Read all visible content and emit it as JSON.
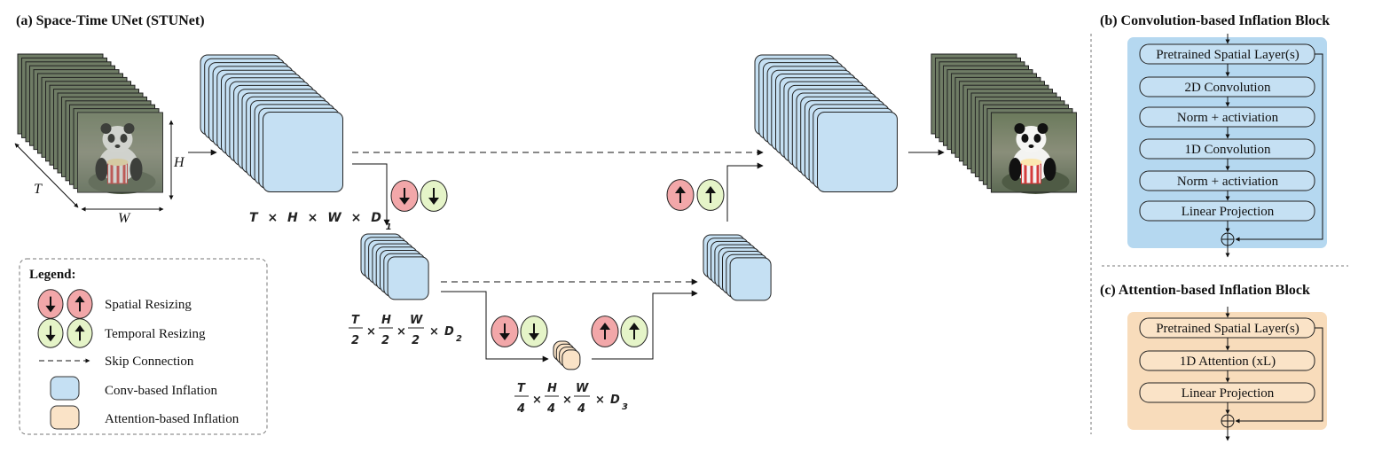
{
  "panel_a": {
    "title": "(a) Space-Time UNet (STUNet)",
    "input_dims": {
      "t": "T",
      "h": "H",
      "w": "W"
    },
    "level1_shape": [
      "T",
      "×",
      "H",
      "×",
      "W",
      "×",
      "D",
      "1"
    ],
    "level2_shape": {
      "n1": "T",
      "d1": "2",
      "n2": "H",
      "d2": "2",
      "n3": "W",
      "d3": "2",
      "x": "×",
      "D": "D",
      "sub": "2"
    },
    "level3_shape": {
      "n1": "T",
      "d1": "4",
      "n2": "H",
      "d2": "4",
      "n3": "W",
      "d3": "4",
      "x": "×",
      "D": "D",
      "sub": "3"
    }
  },
  "legend": {
    "title": "Legend:",
    "items": [
      {
        "label": "Spatial Resizing"
      },
      {
        "label": "Temporal Resizing"
      },
      {
        "label": "Skip Connection"
      },
      {
        "label": "Conv-based Inflation"
      },
      {
        "label": "Attention-based Inflation"
      }
    ]
  },
  "panel_b": {
    "title": "(b) Convolution-based Inflation Block",
    "layers": [
      "Pretrained Spatial Layer(s)",
      "2D Convolution",
      "Norm + activiation",
      "1D Convolution",
      "Norm + activiation",
      "Linear Projection"
    ],
    "sum_symbol": "+"
  },
  "panel_c": {
    "title": "(c) Attention-based Inflation Block",
    "layers": [
      "Pretrained Spatial Layer(s)",
      "1D Attention (xL)",
      "Linear Projection"
    ],
    "sum_symbol": "+"
  },
  "colors": {
    "conv_block": "#c5e0f3",
    "conv_bg": "#b5d8f0",
    "attn_block": "#fae3c7",
    "attn_bg": "#f8dcbb",
    "spatial_circle": "#f2a7a9",
    "temporal_circle": "#e5f4c8"
  },
  "icons": [
    "down-arrow-icon",
    "up-arrow-icon",
    "panda-image"
  ]
}
